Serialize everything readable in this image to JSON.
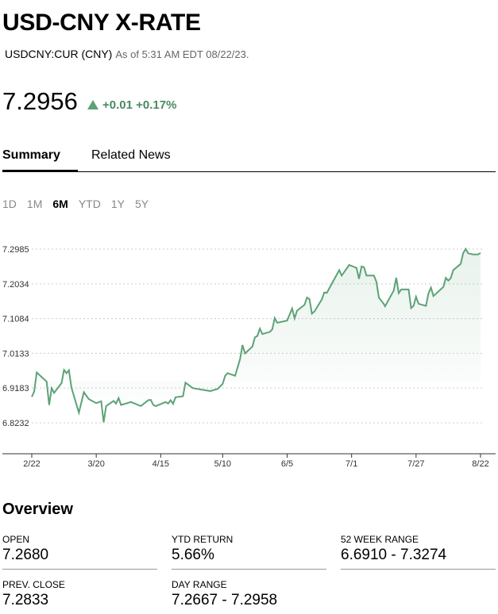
{
  "header": {
    "title": "USD-CNY X-RATE",
    "ticker": "USDCNY:CUR (CNY)",
    "as_of": "As of 5:31 AM EDT 08/22/23."
  },
  "quote": {
    "price": "7.2956",
    "change": "+0.01",
    "change_pct": "+0.17%",
    "direction": "up",
    "color": "#5da277"
  },
  "tabs": [
    {
      "label": "Summary",
      "active": true
    },
    {
      "label": "Related News",
      "active": false
    }
  ],
  "ranges": [
    {
      "label": "1D"
    },
    {
      "label": "1M"
    },
    {
      "label": "6M",
      "active": true
    },
    {
      "label": "YTD"
    },
    {
      "label": "1Y"
    },
    {
      "label": "5Y"
    }
  ],
  "chart_data": {
    "type": "line",
    "title": "",
    "xlabel": "",
    "ylabel": "",
    "x_unit": "days since 2/22",
    "xlim": [
      0,
      181
    ],
    "ylim": [
      6.8232,
      7.2985
    ],
    "yticks": [
      "7.2985",
      "7.2034",
      "7.1084",
      "7.0133",
      "6.9183",
      "6.8232"
    ],
    "ytick_values": [
      7.2985,
      7.2034,
      7.1084,
      7.0133,
      6.9183,
      6.8232
    ],
    "xticks": [
      "2/22",
      "3/20",
      "4/15",
      "5/10",
      "6/5",
      "7/1",
      "7/27",
      "8/22"
    ],
    "xtick_values": [
      0,
      26,
      52,
      77,
      103,
      129,
      155,
      181
    ],
    "grid": true,
    "line_color": "#5da277",
    "points": [
      [
        0,
        6.894
      ],
      [
        1,
        6.909
      ],
      [
        2,
        6.961
      ],
      [
        6,
        6.936
      ],
      [
        7,
        6.872
      ],
      [
        8,
        6.918
      ],
      [
        9,
        6.905
      ],
      [
        12,
        6.932
      ],
      [
        13,
        6.968
      ],
      [
        14,
        6.959
      ],
      [
        15,
        6.967
      ],
      [
        16,
        6.92
      ],
      [
        19,
        6.851
      ],
      [
        21,
        6.907
      ],
      [
        23,
        6.888
      ],
      [
        26,
        6.877
      ],
      [
        28,
        6.882
      ],
      [
        29,
        6.825
      ],
      [
        30,
        6.869
      ],
      [
        33,
        6.883
      ],
      [
        34,
        6.876
      ],
      [
        35,
        6.891
      ],
      [
        36,
        6.872
      ],
      [
        40,
        6.88
      ],
      [
        44,
        6.869
      ],
      [
        47,
        6.885
      ],
      [
        48,
        6.886
      ],
      [
        49,
        6.872
      ],
      [
        50,
        6.869
      ],
      [
        54,
        6.88
      ],
      [
        55,
        6.876
      ],
      [
        56,
        6.885
      ],
      [
        57,
        6.875
      ],
      [
        58,
        6.893
      ],
      [
        61,
        6.896
      ],
      [
        62,
        6.933
      ],
      [
        65,
        6.918
      ],
      [
        72,
        6.91
      ],
      [
        75,
        6.916
      ],
      [
        77,
        6.93
      ],
      [
        78,
        6.952
      ],
      [
        79,
        6.959
      ],
      [
        82,
        6.952
      ],
      [
        84,
        6.997
      ],
      [
        85,
        7.036
      ],
      [
        86,
        7.013
      ],
      [
        89,
        7.032
      ],
      [
        90,
        7.057
      ],
      [
        91,
        7.061
      ],
      [
        92,
        7.081
      ],
      [
        93,
        7.066
      ],
      [
        96,
        7.072
      ],
      [
        97,
        7.079
      ],
      [
        98,
        7.11
      ],
      [
        99,
        7.097
      ],
      [
        103,
        7.103
      ],
      [
        105,
        7.136
      ],
      [
        106,
        7.109
      ],
      [
        107,
        7.13
      ],
      [
        110,
        7.146
      ],
      [
        111,
        7.166
      ],
      [
        112,
        7.162
      ],
      [
        113,
        7.122
      ],
      [
        114,
        7.128
      ],
      [
        117,
        7.161
      ],
      [
        118,
        7.18
      ],
      [
        119,
        7.179
      ],
      [
        124,
        7.241
      ],
      [
        125,
        7.226
      ],
      [
        128,
        7.255
      ],
      [
        131,
        7.247
      ],
      [
        132,
        7.217
      ],
      [
        133,
        7.251
      ],
      [
        134,
        7.249
      ],
      [
        135,
        7.226
      ],
      [
        138,
        7.226
      ],
      [
        139,
        7.209
      ],
      [
        140,
        7.166
      ],
      [
        142,
        7.148
      ],
      [
        142.5,
        7.142
      ],
      [
        146,
        7.185
      ],
      [
        147,
        7.22
      ],
      [
        148,
        7.178
      ],
      [
        149,
        7.188
      ],
      [
        152,
        7.188
      ],
      [
        153,
        7.137
      ],
      [
        154,
        7.143
      ],
      [
        155,
        7.168
      ],
      [
        156,
        7.149
      ],
      [
        159,
        7.143
      ],
      [
        160,
        7.177
      ],
      [
        161,
        7.193
      ],
      [
        162,
        7.17
      ],
      [
        166,
        7.195
      ],
      [
        167,
        7.22
      ],
      [
        168,
        7.212
      ],
      [
        169,
        7.219
      ],
      [
        170,
        7.241
      ],
      [
        173,
        7.258
      ],
      [
        174,
        7.287
      ],
      [
        175,
        7.299
      ],
      [
        176,
        7.287
      ],
      [
        178,
        7.284
      ],
      [
        180,
        7.284
      ],
      [
        181,
        7.288
      ]
    ]
  },
  "overview": {
    "title": "Overview",
    "stats": [
      {
        "label": "OPEN",
        "value": "7.2680"
      },
      {
        "label": "YTD RETURN",
        "value": "5.66%"
      },
      {
        "label": "52 WEEK RANGE",
        "value": "6.6910 - 7.3274"
      },
      {
        "label": "PREV. CLOSE",
        "value": "7.2833"
      },
      {
        "label": "DAY RANGE",
        "value": "7.2667 - 7.2958"
      }
    ]
  }
}
